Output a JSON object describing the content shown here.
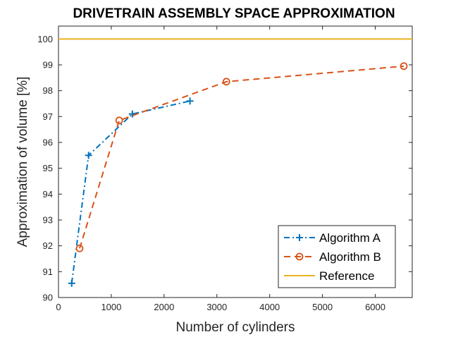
{
  "chart_data": {
    "type": "line",
    "title": "DRIVETRAIN ASSEMBLY SPACE APPROXIMATION",
    "xlabel": "Number of cylinders",
    "ylabel": "Approximation of volume [%]",
    "xlim": [
      0,
      6700
    ],
    "ylim": [
      90,
      100.5
    ],
    "xticks": [
      0,
      1000,
      2000,
      3000,
      4000,
      5000,
      6000
    ],
    "yticks": [
      90,
      91,
      92,
      93,
      94,
      95,
      96,
      97,
      98,
      99,
      100
    ],
    "grid": false,
    "legend_position": "bottom-right",
    "series": [
      {
        "name": "Algorithm A",
        "color": "#0072BD",
        "line_style": "dash-dot",
        "marker": "plus",
        "points": [
          [
            250,
            90.55
          ],
          [
            570,
            95.5
          ],
          [
            1400,
            97.1
          ],
          [
            2490,
            97.6
          ]
        ]
      },
      {
        "name": "Algorithm B",
        "color": "#D95319",
        "line_style": "dashed",
        "marker": "circle",
        "points": [
          [
            400,
            91.9
          ],
          [
            1150,
            96.85
          ],
          [
            3180,
            98.35
          ],
          [
            6540,
            98.95
          ]
        ]
      },
      {
        "name": "Reference",
        "color": "#EDB120",
        "line_style": "solid",
        "marker": "none",
        "points": [
          [
            0,
            100
          ],
          [
            6700,
            100
          ]
        ]
      }
    ]
  }
}
